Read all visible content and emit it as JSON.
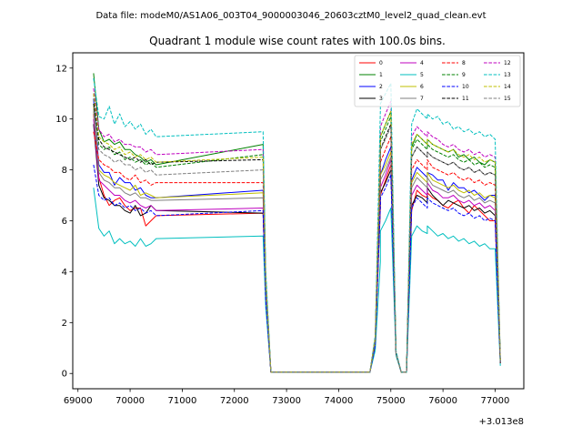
{
  "chart_data": {
    "type": "line",
    "suptitle": "Data file: modeM0/AS1A06_003T04_9000003046_20603cztM0_level2_quad_clean.evt",
    "title": "Quadrant 1 module wise count rates with 100.0s bins.",
    "xlabel": "",
    "ylabel": "",
    "x_offset_label": "+3.013e8",
    "xlim": [
      68900,
      77550
    ],
    "ylim": [
      -0.6,
      12.6
    ],
    "xticks": [
      69000,
      70000,
      71000,
      72000,
      73000,
      74000,
      75000,
      76000,
      77000
    ],
    "xtick_labels": [
      "69000",
      "70000",
      "71000",
      "72000",
      "73000",
      "74000",
      "75000",
      "76000",
      "77000"
    ],
    "yticks": [
      0,
      2,
      4,
      6,
      8,
      10,
      12
    ],
    "ytick_labels": [
      "0",
      "2",
      "4",
      "6",
      "8",
      "10",
      "12"
    ],
    "legend_position": "top-right",
    "segments": [
      {
        "name": "orbit-1",
        "x_start": 69300,
        "step": 100,
        "count": 13
      },
      {
        "name": "saa-gap",
        "x": [
          72550,
          72600,
          72700,
          74600,
          74700,
          74800
        ]
      },
      {
        "name": "orbit-2",
        "x": [
          74800,
          74900,
          75000,
          75100,
          75200,
          75300,
          75400,
          75500,
          75600,
          75700
        ]
      },
      {
        "name": "orbit-3",
        "x_start": 75700,
        "step": 100,
        "count": 15
      }
    ],
    "series": [
      {
        "name": "0",
        "color": "#ff0000",
        "dash": "solid",
        "orbit1": [
          10.2,
          7.7,
          7.0,
          6.6,
          6.8,
          6.9,
          6.6,
          6.4,
          6.5,
          6.5,
          5.8,
          6.0,
          6.2
        ],
        "gap": [
          6.3,
          3.0,
          0.05,
          0.05,
          1.1,
          6.5
        ],
        "orbit2": [
          7.0,
          7.6,
          8.2,
          0.8,
          0.05,
          0.05,
          6.4,
          7.2,
          7.0,
          6.9
        ],
        "orbit3": [
          7.1,
          6.9,
          6.8,
          6.6,
          6.5,
          6.7,
          6.8,
          6.5,
          6.3,
          6.6,
          6.4,
          6.2,
          6.0,
          6.0,
          0.4
        ]
      },
      {
        "name": "1",
        "color": "#008000",
        "dash": "solid",
        "orbit1": [
          11.8,
          9.6,
          9.1,
          9.2,
          9.0,
          9.1,
          8.8,
          8.8,
          8.6,
          8.5,
          8.3,
          8.4,
          8.2
        ],
        "gap": [
          9.0,
          3.8,
          0.05,
          0.05,
          1.4,
          8.7
        ],
        "orbit2": [
          9.3,
          9.8,
          10.3,
          0.8,
          0.05,
          0.05,
          8.9,
          9.4,
          9.2,
          9.0
        ],
        "orbit3": [
          9.2,
          9.0,
          8.9,
          8.8,
          8.7,
          8.8,
          8.5,
          8.6,
          8.4,
          8.5,
          8.3,
          8.2,
          8.4,
          8.3,
          0.5
        ]
      },
      {
        "name": "2",
        "color": "#0000ff",
        "dash": "solid",
        "orbit1": [
          10.8,
          8.2,
          7.9,
          7.9,
          7.4,
          7.7,
          7.5,
          7.5,
          7.2,
          7.3,
          7.0,
          6.9,
          6.9
        ],
        "gap": [
          7.2,
          3.1,
          0.05,
          0.05,
          1.2,
          7.4
        ],
        "orbit2": [
          7.8,
          8.4,
          8.9,
          0.8,
          0.05,
          0.05,
          7.6,
          8.1,
          7.9,
          7.7
        ],
        "orbit3": [
          7.9,
          7.8,
          7.6,
          7.6,
          7.2,
          7.5,
          7.3,
          7.3,
          7.1,
          7.2,
          7.0,
          6.8,
          7.0,
          7.0,
          0.4
        ]
      },
      {
        "name": "3",
        "color": "#000000",
        "dash": "solid",
        "orbit1": [
          9.8,
          7.4,
          6.9,
          6.8,
          6.6,
          6.6,
          6.4,
          6.3,
          6.6,
          6.2,
          6.3,
          6.6,
          6.4
        ],
        "gap": [
          6.3,
          2.9,
          0.05,
          0.05,
          1.2,
          6.7
        ],
        "orbit2": [
          7.1,
          7.5,
          8.0,
          0.8,
          0.05,
          0.05,
          6.6,
          7.0,
          6.9,
          6.7
        ],
        "orbit3": [
          7.3,
          7.0,
          6.8,
          6.6,
          6.8,
          6.7,
          6.6,
          6.5,
          6.6,
          6.4,
          6.5,
          6.3,
          6.4,
          6.2,
          0.4
        ]
      },
      {
        "name": "4",
        "color": "#bf00bf",
        "dash": "solid",
        "orbit1": [
          10.0,
          7.6,
          7.4,
          7.2,
          7.0,
          7.0,
          6.8,
          6.7,
          6.8,
          6.6,
          6.5,
          6.6,
          6.4
        ],
        "gap": [
          6.5,
          3.0,
          0.05,
          0.05,
          1.2,
          6.8
        ],
        "orbit2": [
          7.3,
          7.8,
          8.4,
          0.8,
          0.05,
          0.05,
          7.0,
          7.4,
          7.2,
          7.0
        ],
        "orbit3": [
          7.5,
          7.2,
          7.1,
          6.9,
          6.9,
          7.0,
          6.8,
          6.7,
          6.8,
          6.6,
          6.7,
          6.5,
          6.6,
          6.4,
          0.4
        ]
      },
      {
        "name": "5",
        "color": "#00bfbf",
        "dash": "solid",
        "orbit1": [
          7.3,
          5.7,
          5.4,
          5.6,
          5.1,
          5.3,
          5.1,
          5.2,
          5.0,
          5.3,
          5.0,
          5.1,
          5.3
        ],
        "gap": [
          5.4,
          2.6,
          0.05,
          0.05,
          0.9,
          4.4
        ],
        "orbit2": [
          5.6,
          6.0,
          6.5,
          0.7,
          0.05,
          0.05,
          5.4,
          5.8,
          5.6,
          5.5
        ],
        "orbit3": [
          5.8,
          5.6,
          5.4,
          5.5,
          5.3,
          5.4,
          5.2,
          5.3,
          5.1,
          5.2,
          5.0,
          5.1,
          4.9,
          4.9,
          0.3
        ]
      },
      {
        "name": "6",
        "color": "#bfbf00",
        "dash": "solid",
        "orbit1": [
          10.5,
          8.0,
          7.8,
          7.7,
          7.5,
          7.4,
          7.3,
          7.2,
          7.4,
          7.0,
          7.1,
          7.0,
          6.9
        ],
        "gap": [
          7.1,
          3.2,
          0.05,
          0.05,
          1.3,
          7.3
        ],
        "orbit2": [
          7.8,
          8.2,
          8.7,
          0.8,
          0.05,
          0.05,
          7.5,
          7.9,
          7.7,
          7.5
        ],
        "orbit3": [
          7.9,
          7.6,
          7.5,
          7.4,
          7.3,
          7.4,
          7.2,
          7.1,
          7.2,
          7.0,
          7.1,
          6.9,
          7.0,
          6.9,
          0.4
        ]
      },
      {
        "name": "7",
        "color": "#7f7f7f",
        "dash": "solid",
        "orbit1": [
          10.3,
          7.9,
          7.6,
          7.5,
          7.3,
          7.3,
          7.1,
          7.0,
          7.1,
          6.9,
          6.9,
          6.8,
          6.8
        ],
        "gap": [
          6.9,
          3.1,
          0.05,
          0.05,
          1.2,
          7.0
        ],
        "orbit2": [
          7.6,
          8.0,
          8.5,
          0.8,
          0.05,
          0.05,
          7.3,
          7.7,
          7.5,
          7.3
        ],
        "orbit3": [
          7.7,
          7.4,
          7.3,
          7.2,
          7.1,
          7.2,
          7.0,
          6.9,
          7.0,
          6.8,
          6.9,
          6.7,
          6.8,
          6.7,
          0.4
        ]
      },
      {
        "name": "8",
        "color": "#ff0000",
        "dash": "dashed",
        "orbit1": [
          9.5,
          8.4,
          8.2,
          8.1,
          7.9,
          7.9,
          7.7,
          7.6,
          7.8,
          7.5,
          7.6,
          7.4,
          7.5
        ],
        "gap": [
          7.5,
          3.4,
          0.05,
          0.05,
          1.3,
          8.0
        ],
        "orbit2": [
          8.3,
          8.8,
          9.3,
          0.8,
          0.05,
          0.05,
          8.0,
          8.4,
          8.2,
          8.0
        ],
        "orbit3": [
          8.4,
          8.1,
          8.0,
          7.9,
          7.8,
          7.9,
          7.7,
          7.6,
          7.7,
          7.5,
          7.6,
          7.4,
          7.5,
          7.4,
          0.4
        ]
      },
      {
        "name": "9",
        "color": "#008000",
        "dash": "dashed",
        "orbit1": [
          11.0,
          9.0,
          8.8,
          8.9,
          8.6,
          8.7,
          8.4,
          8.5,
          8.3,
          8.4,
          8.2,
          8.3,
          8.1
        ],
        "gap": [
          8.6,
          3.7,
          0.05,
          0.05,
          1.4,
          8.8
        ],
        "orbit2": [
          9.1,
          9.6,
          10.1,
          0.8,
          0.05,
          0.05,
          8.8,
          9.2,
          9.0,
          8.8
        ],
        "orbit3": [
          9.0,
          8.8,
          8.7,
          8.6,
          8.5,
          8.6,
          8.4,
          8.3,
          8.4,
          8.2,
          8.3,
          8.1,
          8.2,
          8.1,
          0.5
        ]
      },
      {
        "name": "10",
        "color": "#0000ff",
        "dash": "dashed",
        "orbit1": [
          8.2,
          7.0,
          6.8,
          6.9,
          6.6,
          6.7,
          6.5,
          6.6,
          6.4,
          6.5,
          6.3,
          6.4,
          6.2
        ],
        "gap": [
          6.4,
          2.9,
          0.05,
          0.05,
          1.1,
          6.6
        ],
        "orbit2": [
          6.9,
          7.3,
          7.8,
          0.8,
          0.05,
          0.05,
          6.5,
          6.9,
          6.7,
          6.5
        ],
        "orbit3": [
          6.9,
          6.7,
          6.6,
          6.5,
          6.4,
          6.5,
          6.3,
          6.2,
          6.3,
          6.1,
          6.2,
          6.0,
          6.1,
          6.0,
          0.4
        ]
      },
      {
        "name": "11",
        "color": "#000000",
        "dash": "dashed",
        "orbit1": [
          10.6,
          9.2,
          8.9,
          8.8,
          8.7,
          8.6,
          8.5,
          8.4,
          8.5,
          8.3,
          8.4,
          8.2,
          8.3
        ],
        "gap": [
          8.4,
          3.6,
          0.05,
          0.05,
          1.3,
          8.3
        ],
        "orbit2": [
          8.8,
          9.3,
          9.8,
          0.8,
          0.05,
          0.05,
          8.5,
          8.9,
          8.7,
          8.5
        ],
        "orbit3": [
          8.7,
          8.5,
          8.4,
          8.3,
          8.2,
          8.3,
          8.1,
          8.0,
          8.1,
          7.9,
          8.0,
          7.8,
          7.9,
          7.8,
          0.4
        ]
      },
      {
        "name": "12",
        "color": "#bf00bf",
        "dash": "dashed",
        "orbit1": [
          11.2,
          9.6,
          9.3,
          9.4,
          9.1,
          9.2,
          9.0,
          9.0,
          8.9,
          8.9,
          8.7,
          8.8,
          8.6
        ],
        "gap": [
          8.8,
          3.8,
          0.05,
          0.05,
          1.4,
          9.3
        ],
        "orbit2": [
          9.7,
          10.2,
          10.7,
          0.8,
          0.05,
          0.05,
          9.3,
          9.7,
          9.5,
          9.3
        ],
        "orbit3": [
          9.5,
          9.3,
          9.2,
          9.0,
          8.9,
          9.0,
          8.8,
          8.7,
          8.8,
          8.6,
          8.7,
          8.5,
          8.6,
          8.5,
          0.5
        ]
      },
      {
        "name": "13",
        "color": "#00bfbf",
        "dash": "dashed",
        "orbit1": [
          11.6,
          10.1,
          10.0,
          10.5,
          9.8,
          10.2,
          9.7,
          9.9,
          9.6,
          9.8,
          9.4,
          9.6,
          9.3
        ],
        "gap": [
          9.5,
          4.1,
          0.05,
          0.05,
          1.5,
          10.4
        ],
        "orbit2": [
          10.6,
          11.0,
          11.4,
          0.9,
          0.05,
          0.05,
          9.8,
          10.4,
          10.2,
          10.0
        ],
        "orbit3": [
          10.2,
          10.0,
          10.1,
          9.8,
          9.9,
          9.6,
          9.7,
          9.5,
          9.6,
          9.4,
          9.5,
          9.3,
          9.4,
          9.2,
          0.5
        ]
      },
      {
        "name": "14",
        "color": "#bfbf00",
        "dash": "dashed",
        "orbit1": [
          11.0,
          9.3,
          9.1,
          9.0,
          8.8,
          8.9,
          8.6,
          8.7,
          8.5,
          8.6,
          8.4,
          8.5,
          8.3
        ],
        "gap": [
          8.5,
          3.7,
          0.05,
          0.05,
          1.4,
          9.0
        ],
        "orbit2": [
          9.3,
          9.8,
          10.3,
          0.8,
          0.05,
          0.05,
          9.0,
          9.4,
          9.2,
          9.0
        ],
        "orbit3": [
          9.2,
          9.0,
          8.9,
          8.8,
          8.7,
          8.8,
          8.6,
          8.5,
          8.6,
          8.4,
          8.5,
          8.3,
          8.4,
          8.3,
          0.5
        ]
      },
      {
        "name": "15",
        "color": "#7f7f7f",
        "dash": "dashed",
        "orbit1": [
          10.4,
          8.8,
          8.6,
          8.5,
          8.3,
          8.4,
          8.2,
          8.2,
          8.0,
          8.1,
          7.9,
          8.0,
          7.8
        ],
        "gap": [
          8.0,
          3.5,
          0.05,
          0.05,
          1.3,
          8.4
        ],
        "orbit2": [
          8.8,
          9.2,
          9.7,
          0.8,
          0.05,
          0.05,
          8.5,
          8.9,
          8.7,
          8.5
        ],
        "orbit3": [
          8.7,
          8.5,
          8.4,
          8.3,
          8.2,
          8.3,
          8.1,
          8.0,
          8.1,
          7.9,
          8.0,
          7.8,
          7.9,
          7.8,
          0.4
        ]
      }
    ]
  }
}
